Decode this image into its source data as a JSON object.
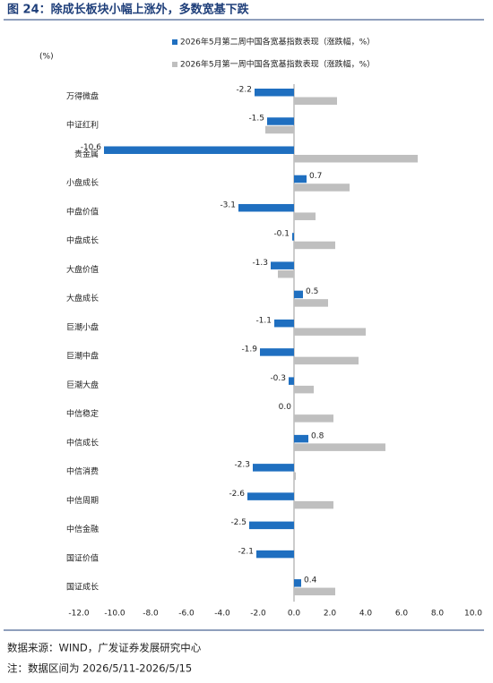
{
  "chart_data": {
    "type": "bar",
    "orientation": "horizontal",
    "title": "图 24：除成长板块小幅上涨外，多数宽基下跌",
    "unit_label": "(%)",
    "categories": [
      "万得微盘",
      "中证红利",
      "贵金属",
      "小盘成长",
      "中盘价值",
      "中盘成长",
      "大盘价值",
      "大盘成长",
      "巨潮小盘",
      "巨潮中盘",
      "巨潮大盘",
      "中信稳定",
      "中信成长",
      "中信消费",
      "中信周期",
      "中信金融",
      "国证价值",
      "国证成长"
    ],
    "series": [
      {
        "name": "2026年5月第二周中国各宽基指数表现（涨跌幅，%）",
        "color": "#1f6fc0",
        "values": [
          -2.2,
          -1.5,
          -10.6,
          0.7,
          -3.1,
          -0.1,
          -1.3,
          0.5,
          -1.1,
          -1.9,
          -0.3,
          0.0,
          0.8,
          -2.3,
          -2.6,
          -2.5,
          -2.1,
          0.4
        ],
        "value_labels": [
          "-2.2",
          "-1.5",
          "-10.6",
          "0.7",
          "-3.1",
          "-0.1",
          "-1.3",
          "0.5",
          "-1.1",
          "-1.9",
          "-0.3",
          "0.0",
          "0.8",
          "-2.3",
          "-2.6",
          "-2.5",
          "-2.1",
          "0.4"
        ]
      },
      {
        "name": "2026年5月第一周中国各宽基指数表现（涨跌幅，%）",
        "color": "#bfbfbf",
        "values": [
          2.4,
          -1.6,
          6.9,
          3.1,
          1.2,
          2.3,
          -0.9,
          1.9,
          4.0,
          3.6,
          1.1,
          2.2,
          5.1,
          0.1,
          2.2,
          0,
          0,
          2.3
        ]
      }
    ],
    "xlim": [
      -12,
      10
    ],
    "xticks": [
      {
        "value": -12,
        "label": "-12.0"
      },
      {
        "value": -10,
        "label": "-10.0"
      },
      {
        "value": -8,
        "label": "-8.0"
      },
      {
        "value": -6,
        "label": "-6.0"
      },
      {
        "value": -4,
        "label": "-4.0"
      },
      {
        "value": -2,
        "label": "-2.0"
      },
      {
        "value": 0,
        "label": "0.0"
      },
      {
        "value": 2,
        "label": "2.0"
      },
      {
        "value": 4,
        "label": "4.0"
      },
      {
        "value": 6,
        "label": "6.0"
      },
      {
        "value": 8,
        "label": "8.0"
      },
      {
        "value": 10,
        "label": "10.0"
      }
    ],
    "source": "数据来源：WIND，广发证券发展研究中心",
    "note": "注：数据区间为 2026/5/11-2026/5/15"
  }
}
